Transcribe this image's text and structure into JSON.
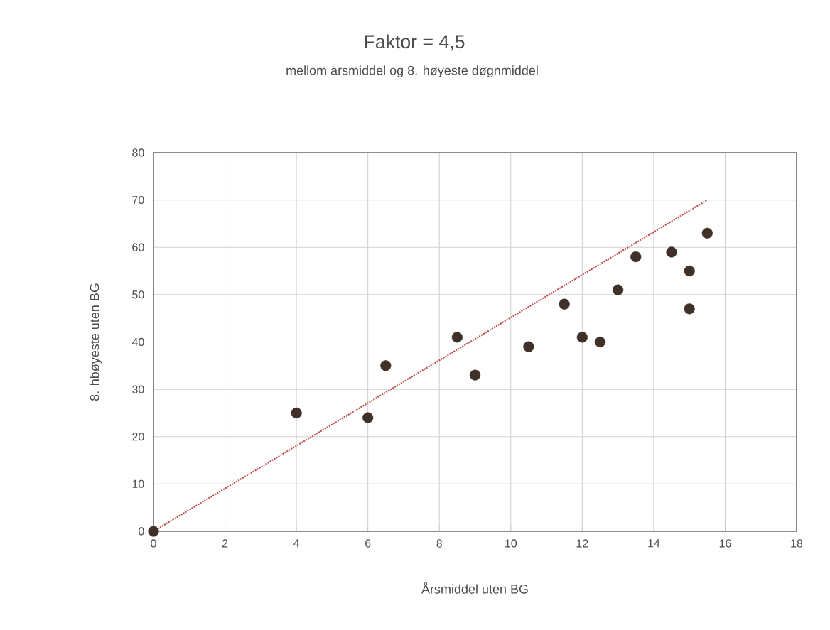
{
  "chart_data": {
    "type": "scatter",
    "title": "Faktor = 4,5",
    "subtitle": "mellom årsmiddel og 8. høyeste døgnmiddel",
    "xlabel": "Årsmiddel uten BG",
    "ylabel": "8. hbøyeste uten BG",
    "xlim": [
      0,
      18
    ],
    "ylim": [
      0,
      80
    ],
    "xticks": [
      0,
      2,
      4,
      6,
      8,
      10,
      12,
      14,
      16,
      18
    ],
    "yticks": [
      0,
      10,
      20,
      30,
      40,
      50,
      60,
      70,
      80
    ],
    "grid": true,
    "series": [
      {
        "color": "#3f3128",
        "marker": "circle",
        "x": [
          0,
          4,
          6,
          6.5,
          8.5,
          9,
          10.5,
          11.5,
          12,
          12.5,
          13,
          13.5,
          14.5,
          15,
          15,
          15.5
        ],
        "values": [
          0,
          25,
          24,
          35,
          41,
          33,
          39,
          48,
          41,
          40,
          51,
          58,
          59,
          55,
          47,
          63
        ]
      },
      {
        "type": "line",
        "color": "#c0504d",
        "line_style": "dotted",
        "marker": "none",
        "x": [
          0,
          15.5
        ],
        "values": [
          0,
          70
        ]
      }
    ]
  }
}
